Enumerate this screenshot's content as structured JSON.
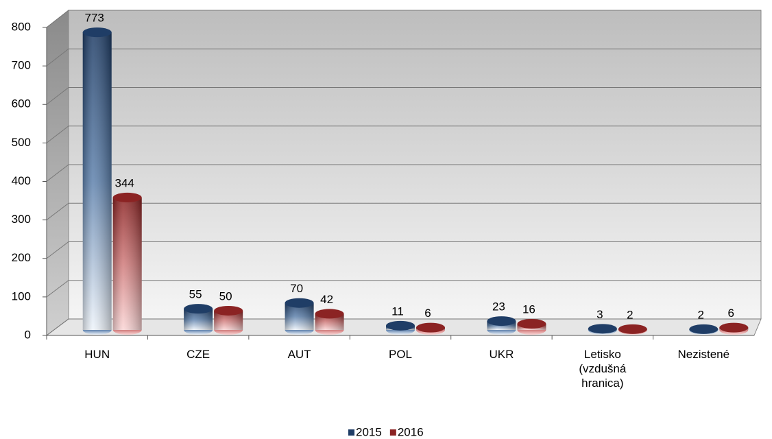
{
  "chart_data": {
    "type": "bar",
    "categories": [
      "HUN",
      "CZE",
      "AUT",
      "POL",
      "UKR",
      "Letisko (vzdušná hranica)",
      "Nezistené"
    ],
    "series": [
      {
        "name": "2015",
        "color": "#1f3d66",
        "values": [
          773,
          55,
          70,
          11,
          23,
          3,
          2
        ]
      },
      {
        "name": "2016",
        "color": "#8b2323",
        "values": [
          344,
          50,
          42,
          6,
          16,
          2,
          6
        ]
      }
    ],
    "ylim": [
      0,
      800
    ],
    "yticks": [
      0,
      100,
      200,
      300,
      400,
      500,
      600,
      700,
      800
    ],
    "grid": true,
    "legend": "bottom"
  }
}
